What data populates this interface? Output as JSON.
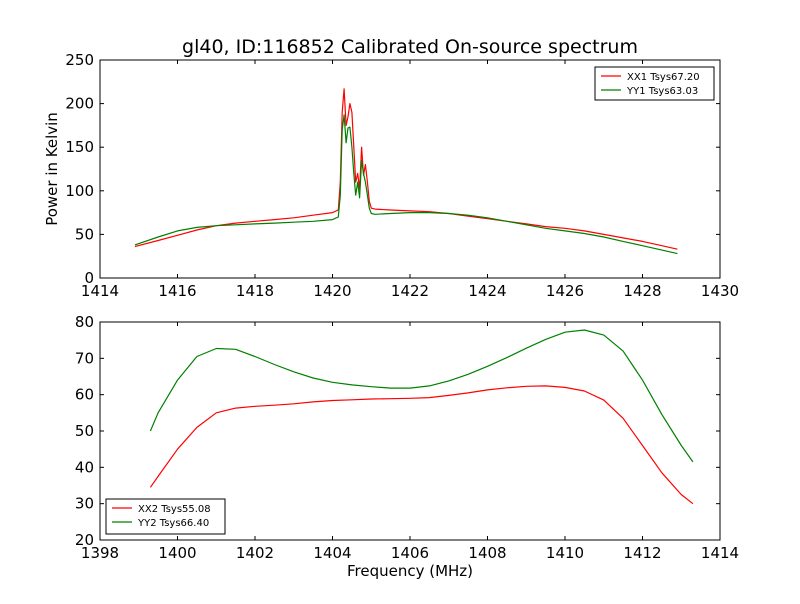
{
  "figure": {
    "title": "gl40, ID:116852 Calibrated On-source spectrum",
    "xlabel": "Frequency (MHz)"
  },
  "chart_data": [
    {
      "type": "line",
      "title": "gl40, ID:116852 Calibrated On-source spectrum",
      "ylabel": "Power in Kelvin",
      "xlabel": "",
      "xlim": [
        1414,
        1430
      ],
      "ylim": [
        0,
        250
      ],
      "xticks": [
        1414,
        1416,
        1418,
        1420,
        1422,
        1424,
        1426,
        1428,
        1430
      ],
      "yticks": [
        0,
        50,
        100,
        150,
        200,
        250
      ],
      "grid": false,
      "legend_position": "top-right",
      "series": [
        {
          "name": "XX1 Tsys67.20",
          "color": "#ff0000",
          "x": [
            1414.9,
            1415.5,
            1416.0,
            1416.5,
            1417.0,
            1417.5,
            1418.0,
            1418.5,
            1419.0,
            1419.5,
            1420.0,
            1420.15,
            1420.2,
            1420.25,
            1420.3,
            1420.35,
            1420.4,
            1420.45,
            1420.5,
            1420.55,
            1420.6,
            1420.65,
            1420.7,
            1420.75,
            1420.8,
            1420.85,
            1420.9,
            1420.95,
            1421.0,
            1421.1,
            1421.5,
            1422.0,
            1422.5,
            1423.0,
            1423.5,
            1424.0,
            1424.5,
            1425.0,
            1425.5,
            1426.0,
            1426.5,
            1427.0,
            1427.5,
            1428.0,
            1428.5,
            1428.9
          ],
          "y": [
            36,
            43,
            49,
            55,
            60,
            63,
            65,
            67,
            69,
            72,
            75,
            78,
            110,
            190,
            217,
            175,
            185,
            200,
            190,
            150,
            110,
            120,
            102,
            150,
            118,
            130,
            110,
            88,
            80,
            79,
            78,
            77,
            76,
            74,
            71,
            68,
            65,
            62,
            59,
            57,
            54,
            50,
            46,
            42,
            37,
            33
          ]
        },
        {
          "name": "YY1 Tsys63.03",
          "color": "#008000",
          "x": [
            1414.9,
            1415.5,
            1416.0,
            1416.5,
            1417.0,
            1417.5,
            1418.0,
            1418.5,
            1419.0,
            1419.5,
            1420.0,
            1420.15,
            1420.2,
            1420.25,
            1420.3,
            1420.35,
            1420.4,
            1420.45,
            1420.5,
            1420.55,
            1420.6,
            1420.65,
            1420.7,
            1420.75,
            1420.8,
            1420.85,
            1420.9,
            1420.95,
            1421.0,
            1421.1,
            1421.5,
            1422.0,
            1422.5,
            1423.0,
            1423.5,
            1424.0,
            1424.5,
            1425.0,
            1425.5,
            1426.0,
            1426.5,
            1427.0,
            1427.5,
            1428.0,
            1428.5,
            1428.9
          ],
          "y": [
            38,
            47,
            54,
            58,
            60,
            61,
            62,
            63,
            64,
            65,
            67,
            70,
            95,
            170,
            187,
            155,
            172,
            173,
            150,
            120,
            95,
            110,
            92,
            135,
            120,
            110,
            95,
            80,
            74,
            73,
            74,
            75,
            75,
            74,
            72,
            69,
            65,
            61,
            57,
            54,
            51,
            47,
            42,
            37,
            32,
            28
          ]
        }
      ]
    },
    {
      "type": "line",
      "title": "",
      "ylabel": "",
      "xlabel": "Frequency (MHz)",
      "xlim": [
        1398,
        1414
      ],
      "ylim": [
        20,
        80
      ],
      "xticks": [
        1398,
        1400,
        1402,
        1404,
        1406,
        1408,
        1410,
        1412,
        1414
      ],
      "yticks": [
        20,
        30,
        40,
        50,
        60,
        70,
        80
      ],
      "grid": false,
      "legend_position": "bottom-left",
      "series": [
        {
          "name": "XX2 Tsys55.08",
          "color": "#ff0000",
          "x": [
            1399.3,
            1399.5,
            1400.0,
            1400.5,
            1401.0,
            1401.5,
            1402.0,
            1402.5,
            1403.0,
            1403.5,
            1404.0,
            1404.5,
            1405.0,
            1405.5,
            1406.0,
            1406.5,
            1407.0,
            1407.5,
            1408.0,
            1408.5,
            1409.0,
            1409.5,
            1410.0,
            1410.5,
            1411.0,
            1411.5,
            1412.0,
            1412.5,
            1413.0,
            1413.3
          ],
          "y": [
            34.5,
            37.5,
            45,
            51,
            55,
            56.3,
            56.8,
            57.1,
            57.5,
            58,
            58.4,
            58.6,
            58.8,
            58.9,
            59,
            59.2,
            59.8,
            60.5,
            61.3,
            61.9,
            62.3,
            62.4,
            62,
            61,
            58.5,
            53.5,
            46,
            38.5,
            32.5,
            30
          ]
        },
        {
          "name": "YY2 Tsys66.40",
          "color": "#008000",
          "x": [
            1399.3,
            1399.5,
            1400.0,
            1400.5,
            1401.0,
            1401.5,
            1402.0,
            1402.5,
            1403.0,
            1403.5,
            1404.0,
            1404.5,
            1405.0,
            1405.5,
            1406.0,
            1406.5,
            1407.0,
            1407.5,
            1408.0,
            1408.5,
            1409.0,
            1409.5,
            1410.0,
            1410.5,
            1411.0,
            1411.5,
            1412.0,
            1412.5,
            1413.0,
            1413.3
          ],
          "y": [
            50,
            55,
            64,
            70.5,
            72.7,
            72.5,
            70.5,
            68.3,
            66.3,
            64.6,
            63.4,
            62.7,
            62.2,
            61.8,
            61.8,
            62.4,
            63.8,
            65.6,
            67.8,
            70.2,
            72.8,
            75.2,
            77.2,
            77.8,
            76.4,
            72,
            64,
            54.5,
            46,
            41.5
          ]
        }
      ]
    }
  ]
}
